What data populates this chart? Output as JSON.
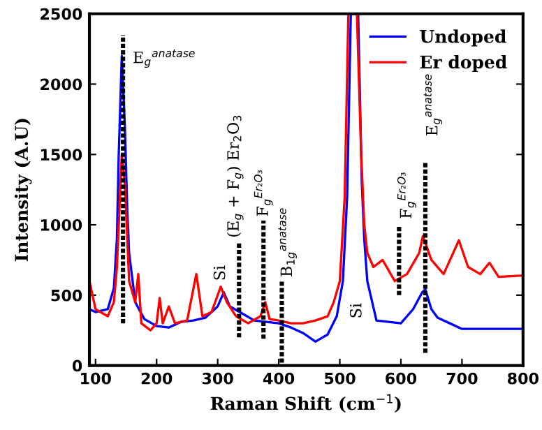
{
  "chart_data": {
    "type": "line",
    "xlabel": "Raman Shift (cm$^{−1}$)",
    "ylabel": "Intensity (A.U)",
    "xlim": [
      90,
      800
    ],
    "xticks": [
      100,
      200,
      300,
      400,
      500,
      600,
      700,
      800
    ],
    "ylim": [
      0,
      2500
    ],
    "yticks": [
      0,
      500,
      1000,
      1500,
      2000,
      2500
    ],
    "legend": "top right",
    "grid": false,
    "series": [
      {
        "name": "Undoped",
        "color": "#0000ff",
        "x": [
          90,
          100,
          120,
          130,
          135,
          138,
          143,
          148,
          152,
          155,
          165,
          180,
          200,
          220,
          240,
          260,
          280,
          300,
          310,
          320,
          340,
          360,
          380,
          400,
          420,
          440,
          460,
          480,
          495,
          505,
          512,
          518,
          530,
          536,
          540,
          545,
          560,
          580,
          600,
          620,
          635,
          640,
          650,
          660,
          680,
          700,
          750,
          800
        ],
        "values": [
          400,
          380,
          400,
          550,
          900,
          1500,
          2200,
          1700,
          1100,
          800,
          450,
          330,
          280,
          270,
          310,
          320,
          340,
          420,
          520,
          420,
          370,
          320,
          310,
          300,
          270,
          230,
          170,
          220,
          350,
          600,
          1200,
          2500,
          2500,
          1300,
          900,
          600,
          320,
          310,
          300,
          400,
          520,
          540,
          400,
          340,
          300,
          260,
          260,
          260
        ]
      },
      {
        "name": "Er doped",
        "color": "#ff0000",
        "x": [
          90,
          100,
          120,
          130,
          135,
          140,
          143,
          148,
          155,
          165,
          170,
          175,
          190,
          200,
          205,
          210,
          220,
          230,
          250,
          265,
          275,
          290,
          305,
          315,
          330,
          350,
          370,
          378,
          385,
          400,
          420,
          440,
          460,
          480,
          490,
          500,
          508,
          514,
          528,
          535,
          540,
          545,
          555,
          570,
          590,
          610,
          630,
          636,
          650,
          670,
          695,
          710,
          730,
          745,
          760,
          800
        ],
        "values": [
          600,
          400,
          350,
          450,
          700,
          1200,
          1500,
          1300,
          600,
          450,
          650,
          300,
          250,
          300,
          480,
          300,
          420,
          300,
          320,
          650,
          350,
          380,
          560,
          450,
          350,
          300,
          350,
          450,
          330,
          320,
          300,
          300,
          320,
          350,
          450,
          600,
          1200,
          2500,
          2500,
          1500,
          1000,
          800,
          700,
          750,
          600,
          650,
          800,
          920,
          750,
          650,
          890,
          700,
          650,
          730,
          630,
          640
        ]
      },
      {
        "color": "#000000",
        "line_style": "dotted",
        "x": [
          145,
          145
        ],
        "values": [
          300,
          2350
        ]
      },
      {
        "color": "#000000",
        "line_style": "dotted",
        "x": [
          335,
          335
        ],
        "values": [
          200,
          880
        ]
      },
      {
        "color": "#000000",
        "line_style": "dotted",
        "x": [
          375,
          375
        ],
        "values": [
          190,
          1030
        ]
      },
      {
        "color": "#000000",
        "line_style": "dotted",
        "x": [
          405,
          405
        ],
        "values": [
          20,
          600
        ]
      },
      {
        "color": "#000000",
        "line_style": "dotted",
        "x": [
          597,
          597
        ],
        "values": [
          500,
          1000
        ]
      },
      {
        "color": "#000000",
        "line_style": "dotted",
        "x": [
          640,
          640
        ],
        "values": [
          90,
          1450
        ]
      }
    ],
    "annotations": [
      {
        "text": "E$_{g}$$^{anatase}$",
        "x": 145,
        "y": 2350
      },
      {
        "text": "Si",
        "x": 305,
        "y": 560
      },
      {
        "text": "(E$_{g}$ + F$_{g}$) Er$_{2}$O$_{3}$",
        "x": 335,
        "y": 880
      },
      {
        "text": "F$_{g}$$^{Er₂O₃}$",
        "x": 375,
        "y": 1030
      },
      {
        "text": "B$_{1g}$$^{anatase}$",
        "x": 405,
        "y": 600
      },
      {
        "text": "Si",
        "x": 560,
        "y": 320
      },
      {
        "text": "F$_{g}$$^{Er₂O₃}$",
        "x": 597,
        "y": 1000
      },
      {
        "text": "E$_{g}$$^{anatase}$",
        "x": 640,
        "y": 1450
      }
    ]
  }
}
